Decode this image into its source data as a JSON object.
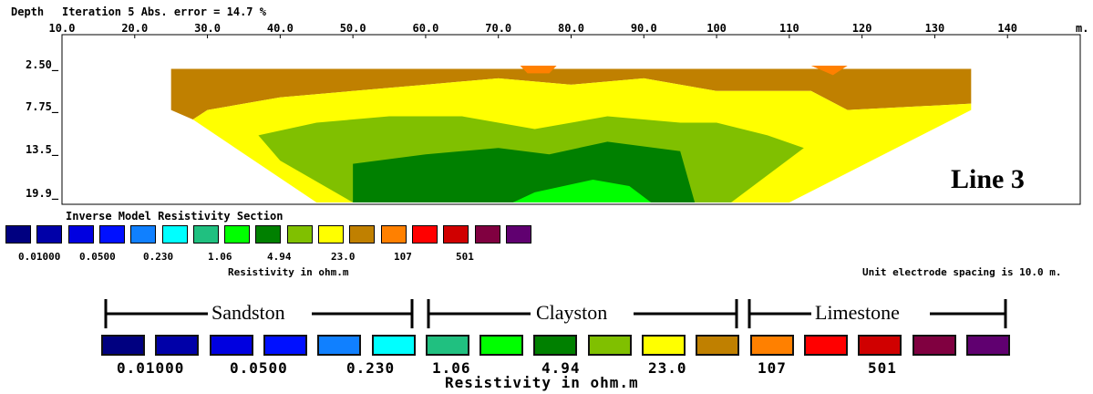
{
  "header": {
    "depth_label": "Depth",
    "iteration_label": "Iteration 5 Abs. error = 14.7 %"
  },
  "chart_data": {
    "type": "heatmap",
    "title": "Inverse Model Resistivity Section",
    "x_unit": "m.",
    "x_ticks": [
      "10.0",
      "20.0",
      "30.0",
      "40.0",
      "50.0",
      "60.0",
      "70.0",
      "80.0",
      "90.0",
      "100",
      "110",
      "120",
      "130",
      "140"
    ],
    "x_range": [
      10,
      150
    ],
    "y_ticks": [
      "2.50",
      "7.75",
      "13.5",
      "19.9"
    ],
    "y_range": [
      0,
      21.6
    ],
    "y_inverted": true,
    "annotation": "Line 3",
    "colorbar_label": "Resistivity in ohm.m",
    "colorbar_values": [
      "0.01000",
      "0.0500",
      "0.230",
      "1.06",
      "4.94",
      "23.0",
      "107",
      "501"
    ],
    "colors": [
      "#000080",
      "#0000a8",
      "#0000e0",
      "#0010ff",
      "#1080ff",
      "#00ffff",
      "#20c080",
      "#00ff00",
      "#008000",
      "#80c000",
      "#ffff00",
      "#c08000",
      "#ff8000",
      "#ff0000",
      "#d00000",
      "#800040",
      "#600070"
    ],
    "bands": [
      {
        "class": 11,
        "points": [
          [
            25,
            0.5
          ],
          [
            135,
            0.5
          ],
          [
            135,
            6
          ],
          [
            118,
            7
          ],
          [
            113,
            4
          ],
          [
            103,
            4
          ],
          [
            100,
            4
          ],
          [
            90,
            2
          ],
          [
            80,
            3
          ],
          [
            70,
            2
          ],
          [
            60,
            3
          ],
          [
            50,
            4
          ],
          [
            40,
            5
          ],
          [
            30,
            7
          ],
          [
            28,
            8.5
          ],
          [
            25,
            7
          ]
        ]
      },
      {
        "class": 10,
        "points": [
          [
            28,
            8.5
          ],
          [
            30,
            7
          ],
          [
            40,
            5
          ],
          [
            50,
            4
          ],
          [
            60,
            3
          ],
          [
            70,
            2
          ],
          [
            80,
            3
          ],
          [
            90,
            2
          ],
          [
            100,
            4
          ],
          [
            113,
            4
          ],
          [
            118,
            7
          ],
          [
            135,
            6
          ],
          [
            135,
            7
          ],
          [
            110,
            21.6
          ],
          [
            45,
            21.6
          ]
        ]
      },
      {
        "class": 9,
        "points": [
          [
            37,
            11
          ],
          [
            45,
            9
          ],
          [
            55,
            8
          ],
          [
            65,
            8
          ],
          [
            75,
            10
          ],
          [
            85,
            8
          ],
          [
            95,
            9
          ],
          [
            100,
            9
          ],
          [
            107,
            11
          ],
          [
            112,
            13
          ],
          [
            102,
            21.6
          ],
          [
            50,
            21.6
          ],
          [
            40,
            15
          ]
        ]
      },
      {
        "class": 8,
        "points": [
          [
            50,
            15.5
          ],
          [
            60,
            14
          ],
          [
            70,
            13
          ],
          [
            77,
            14
          ],
          [
            85,
            12
          ],
          [
            95,
            13.5
          ],
          [
            97,
            21.6
          ],
          [
            50,
            21.6
          ]
        ]
      },
      {
        "class": 7,
        "points": [
          [
            75,
            20
          ],
          [
            83,
            18
          ],
          [
            88,
            19
          ],
          [
            91,
            21.6
          ],
          [
            72,
            21.6
          ]
        ]
      }
    ],
    "small_patches": [
      {
        "class": 12,
        "points": [
          [
            73,
            0
          ],
          [
            78,
            0
          ],
          [
            77,
            1.2
          ],
          [
            74,
            1.2
          ]
        ]
      },
      {
        "class": 12,
        "points": [
          [
            113,
            0
          ],
          [
            118,
            0
          ],
          [
            116,
            1.5
          ]
        ]
      }
    ]
  },
  "legend_top": {
    "title": "Inverse Model Resistivity Section",
    "unit_label": "Resistivity in ohm.m",
    "spacing_note": "Unit electrode spacing is 10.0 m."
  },
  "legend_bottom": {
    "unit_label": "Resistivity in ohm.m",
    "values": [
      "0.01000",
      "0.0500",
      "0.230",
      "1.06",
      "4.94",
      "23.0",
      "107",
      "501"
    ],
    "groups": [
      "Sandston",
      "Clayston",
      "Limestone"
    ],
    "colors": [
      "#000080",
      "#0000a8",
      "#0000e0",
      "#0010ff",
      "#1080ff",
      "#00ffff",
      "#20c080",
      "#00ff00",
      "#008000",
      "#80c000",
      "#ffff00",
      "#c08000",
      "#ff8000",
      "#ff0000",
      "#d00000",
      "#800040",
      "#600070"
    ]
  }
}
